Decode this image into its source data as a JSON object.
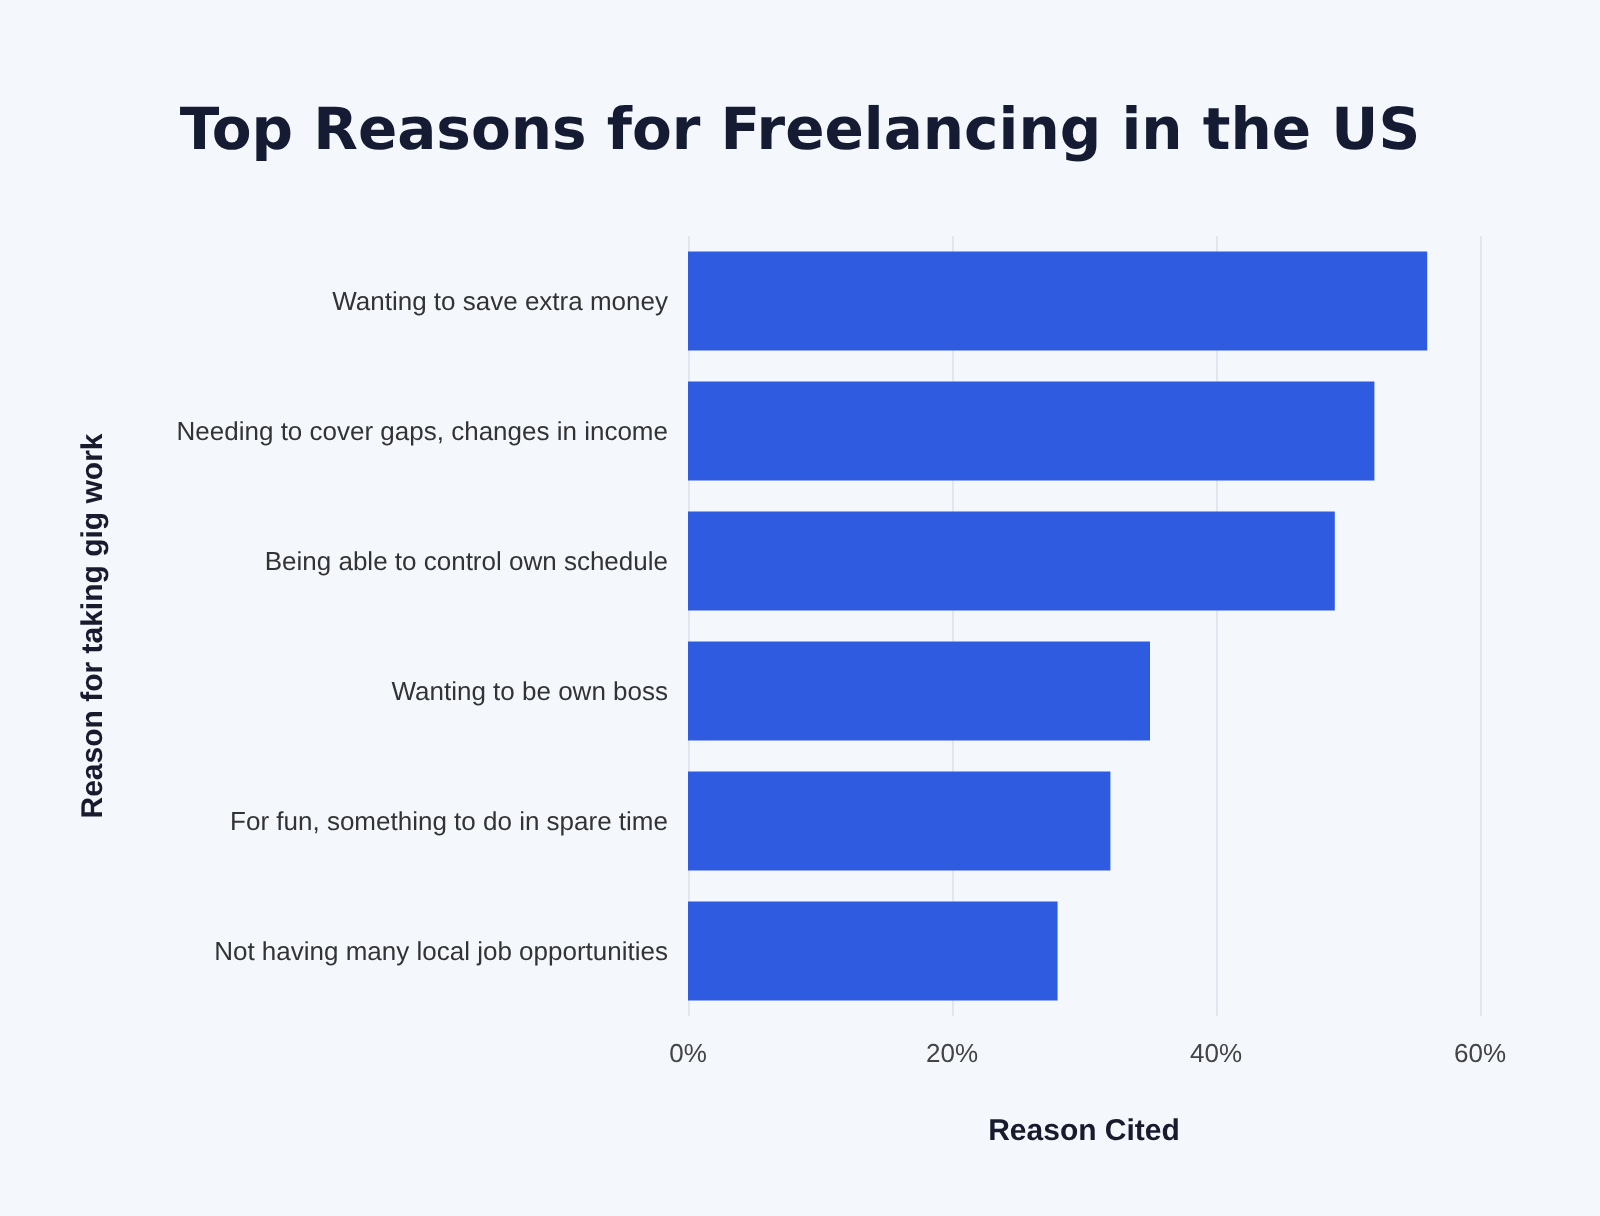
{
  "chart_data": {
    "type": "bar",
    "orientation": "horizontal",
    "title": "Top Reasons for Freelancing in the US",
    "xlabel": "Reason Cited",
    "ylabel": "Reason for taking gig work",
    "categories": [
      "Wanting to save extra money",
      "Needing to cover gaps, changes in income",
      "Being able to control own schedule",
      "Wanting to be own boss",
      "For fun, something to do in spare time",
      "Not having many local job opportunities"
    ],
    "values": [
      56,
      52,
      49,
      35,
      32,
      28
    ],
    "color": "#2f5be1",
    "xlim": [
      0,
      60
    ],
    "xticks": [
      {
        "value": 0,
        "label": "0%"
      },
      {
        "value": 20,
        "label": "20%"
      },
      {
        "value": 40,
        "label": "40%"
      },
      {
        "value": 60,
        "label": "60%"
      }
    ],
    "grid": "x"
  }
}
